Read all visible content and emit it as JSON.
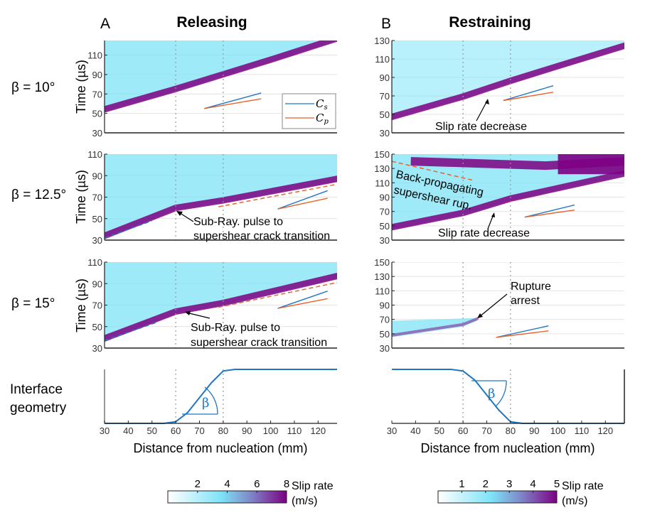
{
  "panels": {
    "A": {
      "letter": "A",
      "title": "Releasing"
    },
    "B": {
      "letter": "B",
      "title": "Restraining"
    }
  },
  "row_labels": [
    "β = 10°",
    "β = 12.5°",
    "β = 15°"
  ],
  "geometry_label": [
    "Interface",
    "geometry"
  ],
  "xlabel": "Distance from nucleation (mm)",
  "ylabel": "Time (µs)",
  "beta_symbol": "β",
  "legend": {
    "cs": "C",
    "cs_sub": "s",
    "cp": "C",
    "cp_sub": "p"
  },
  "colors": {
    "cs": "#1f77c4",
    "cp": "#e8622c",
    "low": "#ffffff",
    "mid": "#7ee3f7",
    "high": "#7d0083"
  },
  "annotations": {
    "A12": [
      "Sub-Ray. pulse to",
      "supershear crack transition"
    ],
    "A15": [
      "Sub-Ray. pulse to",
      "supershear crack transition"
    ],
    "B10": [
      "Slip rate decrease"
    ],
    "B12a": [
      "Back-propagating",
      "supershear rup."
    ],
    "B12b": [
      "Slip rate decrease"
    ],
    "B15": [
      "Rupture",
      "arrest"
    ]
  },
  "colorbars": {
    "A": {
      "ticks": [
        "2",
        "4",
        "6",
        "8"
      ],
      "min": 0,
      "max": 8,
      "label": [
        "Slip rate",
        "(m/s)"
      ]
    },
    "B": {
      "ticks": [
        "1",
        "2",
        "3",
        "4",
        "5"
      ],
      "min": 0,
      "max": 5,
      "label": [
        "Slip rate",
        "(m/s)"
      ]
    }
  },
  "chart_data": [
    {
      "type": "heatmap",
      "id": "A-10",
      "title": "Releasing β = 10°",
      "xlabel": "",
      "ylabel": "Time (µs)",
      "xlim": [
        30,
        128
      ],
      "ylim": [
        30,
        125
      ],
      "yticks": [
        30,
        50,
        70,
        90,
        110
      ],
      "xticks": [
        30,
        40,
        50,
        60,
        70,
        80,
        90,
        100,
        110,
        120
      ],
      "vlines": [
        60,
        80
      ],
      "front": [
        [
          30,
          52
        ],
        [
          60,
          73
        ],
        [
          80,
          88
        ],
        [
          100,
          103
        ],
        [
          128,
          125
        ]
      ],
      "cs_line": [
        [
          72,
          55
        ],
        [
          96,
          71
        ]
      ],
      "cp_line": [
        [
          72,
          55
        ],
        [
          96,
          65
        ]
      ]
    },
    {
      "type": "heatmap",
      "id": "A-12.5",
      "title": "Releasing β = 12.5°",
      "ylabel": "Time (µs)",
      "xlim": [
        30,
        128
      ],
      "ylim": [
        30,
        110
      ],
      "yticks": [
        30,
        50,
        70,
        90,
        110
      ],
      "vlines": [
        60,
        80
      ],
      "front": [
        [
          30,
          32
        ],
        [
          60,
          58
        ],
        [
          80,
          65
        ],
        [
          128,
          85
        ]
      ],
      "dashed_cs": [
        [
          30,
          32
        ],
        [
          50,
          48
        ]
      ],
      "dashed_cp": [
        [
          78,
          61
        ],
        [
          128,
          82
        ]
      ],
      "cs_line": [
        [
          103,
          59
        ],
        [
          124,
          76
        ]
      ],
      "cp_line": [
        [
          103,
          59
        ],
        [
          124,
          69
        ]
      ]
    },
    {
      "type": "heatmap",
      "id": "A-15",
      "title": "Releasing β = 15°",
      "ylabel": "Time (µs)",
      "xlim": [
        30,
        128
      ],
      "ylim": [
        30,
        110
      ],
      "yticks": [
        30,
        50,
        70,
        90,
        110
      ],
      "vlines": [
        60,
        80
      ],
      "front": [
        [
          30,
          37
        ],
        [
          60,
          62
        ],
        [
          80,
          70
        ],
        [
          128,
          95
        ]
      ],
      "dashed_cs": [
        [
          30,
          37
        ],
        [
          52,
          54
        ]
      ],
      "dashed_cp": [
        [
          78,
          68
        ],
        [
          128,
          91
        ]
      ],
      "cs_line": [
        [
          103,
          67
        ],
        [
          124,
          83
        ]
      ],
      "cp_line": [
        [
          103,
          67
        ],
        [
          124,
          76
        ]
      ]
    },
    {
      "type": "heatmap",
      "id": "B-10",
      "title": "Restraining β = 10°",
      "ylabel": "",
      "xlim": [
        30,
        128
      ],
      "ylim": [
        30,
        130
      ],
      "yticks": [
        30,
        50,
        70,
        90,
        110,
        130
      ],
      "vlines": [
        60,
        80
      ],
      "front": [
        [
          30,
          45
        ],
        [
          60,
          67
        ],
        [
          80,
          84
        ],
        [
          100,
          100
        ],
        [
          128,
          122
        ]
      ],
      "cs_line": [
        [
          77,
          65
        ],
        [
          98,
          81
        ]
      ],
      "cp_line": [
        [
          77,
          65
        ],
        [
          98,
          74
        ]
      ]
    },
    {
      "type": "heatmap",
      "id": "B-12.5",
      "title": "Restraining β = 12.5°",
      "ylabel": "",
      "xlim": [
        30,
        128
      ],
      "ylim": [
        30,
        150
      ],
      "yticks": [
        30,
        50,
        70,
        90,
        110,
        130,
        150
      ],
      "vlines": [
        60,
        80
      ],
      "front": [
        [
          30,
          45
        ],
        [
          60,
          65
        ],
        [
          80,
          85
        ],
        [
          128,
          120
        ]
      ],
      "dashed_cp": [
        [
          30,
          140
        ],
        [
          65,
          113
        ]
      ],
      "cs_line": [
        [
          86,
          62
        ],
        [
          107,
          79
        ]
      ],
      "cp_line": [
        [
          86,
          62
        ],
        [
          107,
          72
        ]
      ]
    },
    {
      "type": "heatmap",
      "id": "B-15",
      "title": "Restraining β = 15°",
      "ylabel": "",
      "xlim": [
        30,
        128
      ],
      "ylim": [
        30,
        150
      ],
      "yticks": [
        30,
        50,
        70,
        90,
        110,
        130,
        150
      ],
      "vlines": [
        60,
        80
      ],
      "front": [
        [
          30,
          45
        ],
        [
          60,
          60
        ],
        [
          66,
          68
        ]
      ],
      "cs_line": [
        [
          74,
          45
        ],
        [
          96,
          61
        ]
      ],
      "cp_line": [
        [
          74,
          45
        ],
        [
          96,
          54
        ]
      ]
    },
    {
      "type": "line",
      "id": "A-geometry",
      "title": "Interface geometry (releasing)",
      "xlabel": "Distance from nucleation (mm)",
      "xlim": [
        30,
        128
      ],
      "xticks": [
        30,
        40,
        50,
        60,
        70,
        80,
        90,
        100,
        110,
        120
      ],
      "x": [
        30,
        55,
        60,
        65,
        75,
        80,
        85,
        128
      ],
      "y": [
        0,
        0,
        0.03,
        0.2,
        0.75,
        0.97,
        1,
        1
      ]
    },
    {
      "type": "line",
      "id": "B-geometry",
      "title": "Interface geometry (restraining)",
      "xlabel": "Distance from nucleation (mm)",
      "xlim": [
        30,
        128
      ],
      "xticks": [
        30,
        40,
        50,
        60,
        70,
        80,
        90,
        100,
        110,
        120
      ],
      "x": [
        30,
        55,
        60,
        65,
        75,
        80,
        85,
        128
      ],
      "y": [
        1,
        1,
        0.97,
        0.8,
        0.25,
        0.03,
        0,
        0
      ]
    }
  ]
}
